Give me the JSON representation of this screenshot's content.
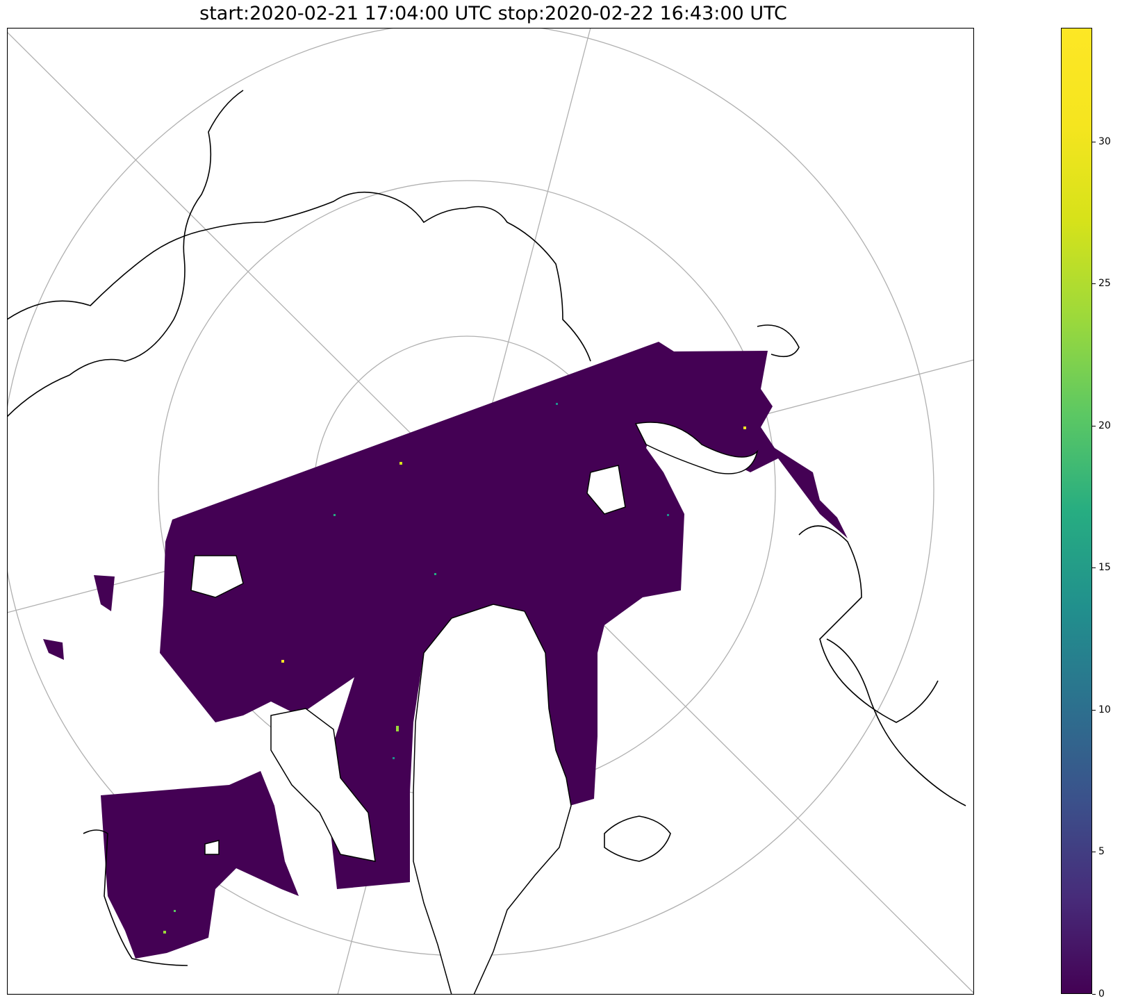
{
  "title": "start:2020-02-21 17:04:00 UTC stop:2020-02-22 16:43:00 UTC",
  "colors": {
    "coastline": "#000000",
    "graticule": "#b0b0b0",
    "data_low": "#440154",
    "data_mid": "#21908d",
    "data_high": "#fde725",
    "colormap": "viridis"
  },
  "chart_data": {
    "type": "heatmap",
    "title": "start:2020-02-21 17:04:00 UTC stop:2020-02-22 16:43:00 UTC",
    "projection": "north-polar-stereographic",
    "colorbar": {
      "min": 0,
      "max": 34,
      "ticks": [
        0,
        5,
        10,
        15,
        20,
        25,
        30
      ],
      "tick_labels": [
        "0",
        "5",
        "10",
        "15",
        "20",
        "25",
        "30"
      ],
      "colormap": "viridis",
      "placement": "right"
    },
    "grid": true,
    "description_values": {
      "dominant_value": 0,
      "typical_range": [
        0,
        3
      ],
      "max_observed": 34
    }
  }
}
